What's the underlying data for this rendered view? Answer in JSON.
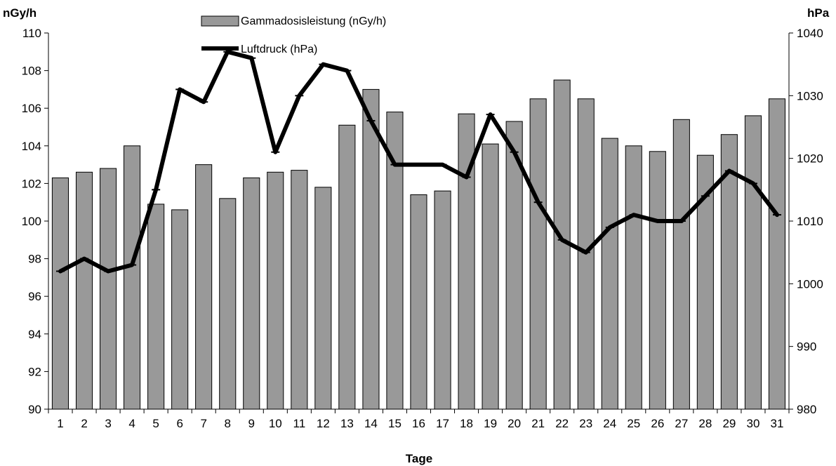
{
  "chart_data": {
    "type": "bar",
    "categories": [
      "1",
      "2",
      "3",
      "4",
      "5",
      "6",
      "7",
      "8",
      "9",
      "10",
      "11",
      "12",
      "13",
      "14",
      "15",
      "16",
      "17",
      "18",
      "19",
      "20",
      "21",
      "22",
      "23",
      "24",
      "25",
      "26",
      "27",
      "28",
      "29",
      "30",
      "31"
    ],
    "series": [
      {
        "name": "Gammadosisleistung (nGy/h)",
        "type": "bar",
        "axis": "left",
        "color": "#999999",
        "values": [
          102.3,
          102.6,
          102.8,
          104.0,
          100.9,
          100.6,
          103.0,
          101.2,
          102.3,
          102.6,
          102.7,
          101.8,
          105.1,
          107.0,
          105.8,
          101.4,
          101.6,
          105.7,
          104.1,
          105.3,
          106.5,
          107.5,
          106.5,
          104.4,
          104.0,
          103.7,
          105.4,
          103.5,
          104.6,
          105.6,
          106.5
        ]
      },
      {
        "name": "Luftdruck (hPa)",
        "type": "line",
        "axis": "right",
        "color": "#000000",
        "values": [
          1002,
          1004,
          1002,
          1003,
          1015,
          1031,
          1029,
          1037,
          1036,
          1021,
          1030,
          1035,
          1034,
          1026,
          1019,
          1019,
          1019,
          1017,
          1027,
          1021,
          1013,
          1007,
          1005,
          1009,
          1011,
          1010,
          1010,
          1014,
          1018,
          1016,
          1011
        ]
      }
    ],
    "xlabel": "Tage",
    "ylabel": "nGy/h",
    "y2label": "hPa",
    "ylim": [
      90,
      110
    ],
    "y2lim": [
      980,
      1040
    ],
    "yticks": [
      "90",
      "92",
      "94",
      "96",
      "98",
      "100",
      "102",
      "104",
      "106",
      "108",
      "110"
    ],
    "y2ticks": [
      "980",
      "990",
      "1000",
      "1010",
      "1020",
      "1030",
      "1040"
    ],
    "grid": false,
    "legend_position": "top-center"
  }
}
